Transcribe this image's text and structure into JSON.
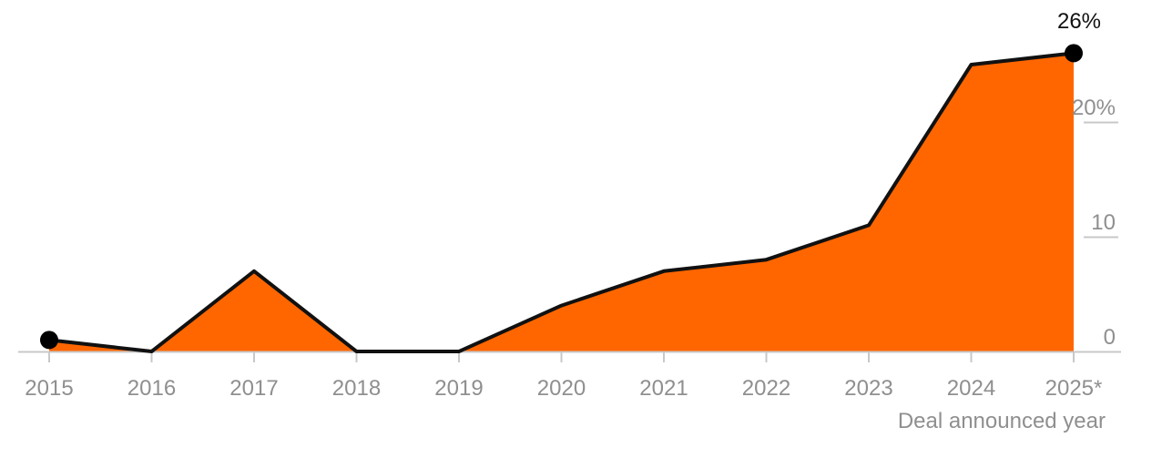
{
  "chart_data": {
    "type": "area",
    "title": "",
    "xlabel": "Deal announced year",
    "ylabel": "",
    "ylim": [
      0,
      26
    ],
    "grid": false,
    "colors": {
      "area_fill": "#ff6600",
      "line": "#111111",
      "axis": "#c8c8c8",
      "tick_text": "#8f8f8f",
      "marker": "#000000"
    },
    "x": [
      "2015",
      "2016",
      "2017",
      "2018",
      "2019",
      "2020",
      "2021",
      "2022",
      "2023",
      "2024",
      "2025*"
    ],
    "series": [
      {
        "values": [
          1,
          0,
          7,
          0,
          0,
          4,
          7,
          8,
          11,
          25,
          26
        ]
      }
    ],
    "y_ticks": [
      {
        "value": 0,
        "label": "0"
      },
      {
        "value": 10,
        "label": "10"
      },
      {
        "value": 20,
        "label": "20%"
      }
    ],
    "end_label": "26%",
    "highlighted_points": [
      "start",
      "end"
    ]
  }
}
